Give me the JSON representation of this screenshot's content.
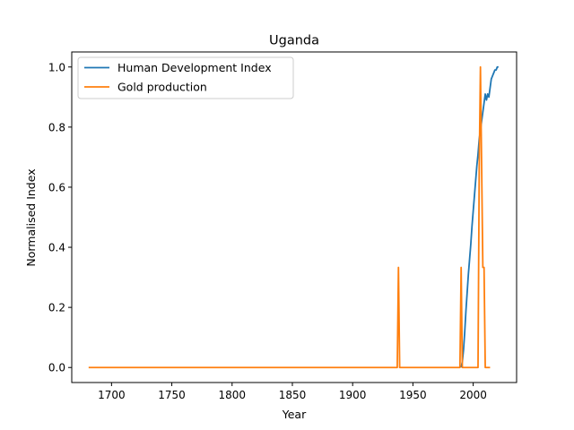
{
  "chart_data": {
    "type": "line",
    "title": "Uganda",
    "xlabel": "Year",
    "ylabel": "Normalised Index",
    "xlim": [
      1667,
      2036
    ],
    "ylim": [
      -0.05,
      1.05
    ],
    "xticks": [
      1700,
      1750,
      1800,
      1850,
      1900,
      1950,
      2000
    ],
    "yticks": [
      0.0,
      0.2,
      0.4,
      0.6,
      0.8,
      1.0
    ],
    "ytick_labels": [
      "0.0",
      "0.2",
      "0.4",
      "0.6",
      "0.8",
      "1.0"
    ],
    "grid": false,
    "legend_position": "upper-left",
    "series": [
      {
        "name": "Human Development Index",
        "color": "#1f77b4",
        "points": [
          [
            1990,
            0.0
          ],
          [
            1991,
            0.02
          ],
          [
            1992,
            0.06
          ],
          [
            1993,
            0.12
          ],
          [
            1994,
            0.19
          ],
          [
            1995,
            0.25
          ],
          [
            1996,
            0.31
          ],
          [
            1997,
            0.36
          ],
          [
            1998,
            0.41
          ],
          [
            1999,
            0.47
          ],
          [
            2000,
            0.52
          ],
          [
            2001,
            0.57
          ],
          [
            2002,
            0.62
          ],
          [
            2003,
            0.67
          ],
          [
            2004,
            0.71
          ],
          [
            2005,
            0.76
          ],
          [
            2006,
            0.79
          ],
          [
            2007,
            0.82
          ],
          [
            2008,
            0.85
          ],
          [
            2009,
            0.88
          ],
          [
            2010,
            0.91
          ],
          [
            2011,
            0.89
          ],
          [
            2012,
            0.91
          ],
          [
            2013,
            0.9
          ],
          [
            2014,
            0.93
          ],
          [
            2015,
            0.96
          ],
          [
            2016,
            0.97
          ],
          [
            2017,
            0.98
          ],
          [
            2018,
            0.99
          ],
          [
            2019,
            0.99
          ],
          [
            2020,
            1.0
          ],
          [
            2021,
            1.0
          ]
        ]
      },
      {
        "name": "Gold production",
        "color": "#ff7f0e",
        "points": [
          [
            1681,
            0.0
          ],
          [
            1937,
            0.0
          ],
          [
            1938,
            0.333
          ],
          [
            1939,
            0.0
          ],
          [
            1989,
            0.0
          ],
          [
            1990,
            0.333
          ],
          [
            1991,
            0.0
          ],
          [
            2004,
            0.0
          ],
          [
            2005,
            0.667
          ],
          [
            2006,
            1.0
          ],
          [
            2007,
            0.667
          ],
          [
            2008,
            0.333
          ],
          [
            2009,
            0.333
          ],
          [
            2010,
            0.0
          ],
          [
            2014,
            0.0
          ]
        ]
      }
    ]
  }
}
